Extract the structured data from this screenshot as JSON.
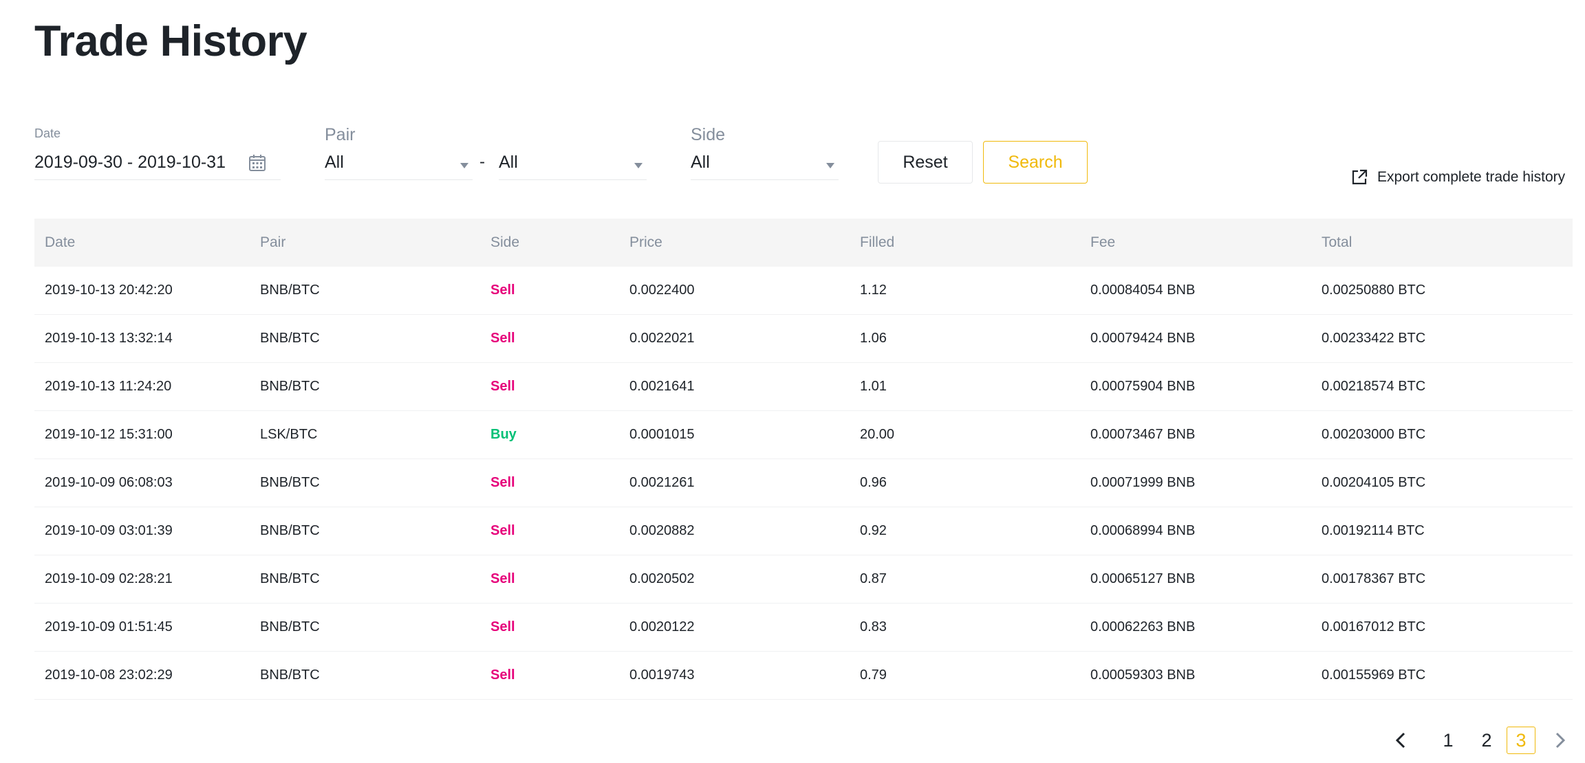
{
  "page": {
    "title": "Trade History"
  },
  "filters": {
    "date_label": "Date",
    "date_value": "2019-09-30 - 2019-10-31",
    "pair_label": "Pair",
    "pair_base": "All",
    "pair_separator": "-",
    "pair_quote": "All",
    "side_label": "Side",
    "side_value": "All",
    "reset_label": "Reset",
    "search_label": "Search"
  },
  "export": {
    "label": "Export complete trade history",
    "icon": "export-icon"
  },
  "table": {
    "headers": [
      "Date",
      "Pair",
      "Side",
      "Price",
      "Filled",
      "Fee",
      "Total"
    ],
    "rows": [
      [
        "2019-10-13 20:42:20",
        "BNB/BTC",
        "Sell",
        "0.0022400",
        "1.12",
        "0.00084054 BNB",
        "0.00250880 BTC"
      ],
      [
        "2019-10-13 13:32:14",
        "BNB/BTC",
        "Sell",
        "0.0022021",
        "1.06",
        "0.00079424 BNB",
        "0.00233422 BTC"
      ],
      [
        "2019-10-13 11:24:20",
        "BNB/BTC",
        "Sell",
        "0.0021641",
        "1.01",
        "0.00075904 BNB",
        "0.00218574 BTC"
      ],
      [
        "2019-10-12 15:31:00",
        "LSK/BTC",
        "Buy",
        "0.0001015",
        "20.00",
        "0.00073467 BNB",
        "0.00203000 BTC"
      ],
      [
        "2019-10-09 06:08:03",
        "BNB/BTC",
        "Sell",
        "0.0021261",
        "0.96",
        "0.00071999 BNB",
        "0.00204105 BTC"
      ],
      [
        "2019-10-09 03:01:39",
        "BNB/BTC",
        "Sell",
        "0.0020882",
        "0.92",
        "0.00068994 BNB",
        "0.00192114 BTC"
      ],
      [
        "2019-10-09 02:28:21",
        "BNB/BTC",
        "Sell",
        "0.0020502",
        "0.87",
        "0.00065127 BNB",
        "0.00178367 BTC"
      ],
      [
        "2019-10-09 01:51:45",
        "BNB/BTC",
        "Sell",
        "0.0020122",
        "0.83",
        "0.00062263 BNB",
        "0.00167012 BTC"
      ],
      [
        "2019-10-08 23:02:29",
        "BNB/BTC",
        "Sell",
        "0.0019743",
        "0.79",
        "0.00059303 BNB",
        "0.00155969 BTC"
      ]
    ]
  },
  "pagination": {
    "pages": [
      "1",
      "2",
      "3"
    ],
    "current": "3"
  },
  "colors": {
    "accent": "#f0b90b",
    "sell": "#e6007a",
    "buy": "#02c076",
    "muted": "#848e9c",
    "text": "#1e2329"
  }
}
